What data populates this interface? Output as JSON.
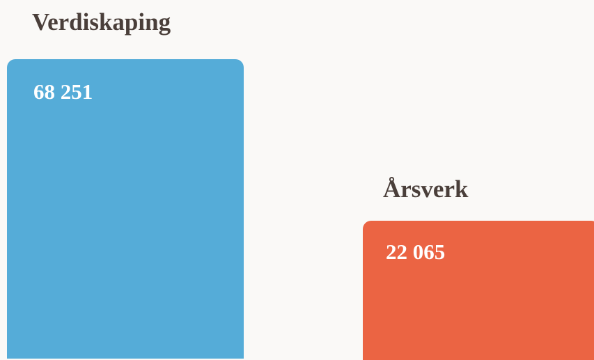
{
  "items": [
    {
      "label": "Verdiskaping",
      "value": "68 251",
      "color": "#55acd8"
    },
    {
      "label": "Årsverk",
      "value": "22 065",
      "color": "#eb6443"
    }
  ]
}
